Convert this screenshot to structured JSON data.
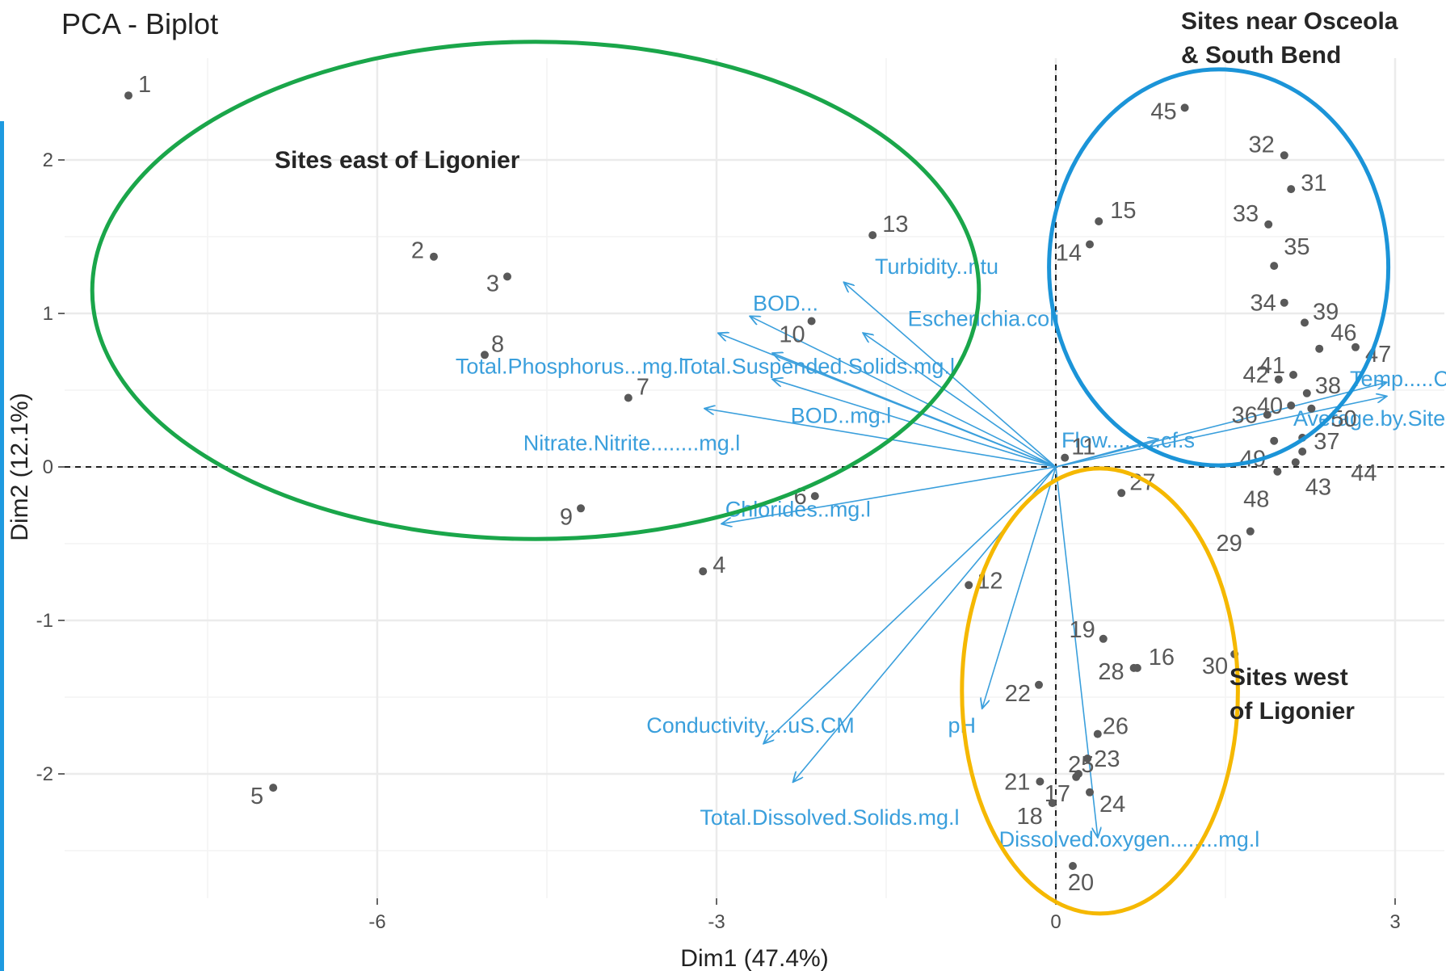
{
  "chart_data": {
    "type": "scatter",
    "title": "PCA - Biplot",
    "xlabel": "Dim1 (47.4%)",
    "ylabel": "Dim2 (12.1%)",
    "xlim": [
      -8.6,
      3.4
    ],
    "ylim": [
      -2.87,
      2.6
    ],
    "xticks": [
      -6,
      -3,
      0,
      3
    ],
    "yticks": [
      -2,
      -1,
      0,
      1,
      2
    ],
    "grid": true,
    "colors": {
      "points": "#595959",
      "labels": "#595959",
      "vectors": "#3a9fdc",
      "grid": "#ebebeb"
    },
    "points": [
      {
        "label": "1",
        "x": -8.2,
        "y": 2.42
      },
      {
        "label": "2",
        "x": -5.5,
        "y": 1.37
      },
      {
        "label": "3",
        "x": -4.85,
        "y": 1.24
      },
      {
        "label": "4",
        "x": -3.12,
        "y": -0.68
      },
      {
        "label": "5",
        "x": -6.92,
        "y": -2.09
      },
      {
        "label": "6",
        "x": -2.13,
        "y": -0.19
      },
      {
        "label": "7",
        "x": -3.78,
        "y": 0.45
      },
      {
        "label": "8",
        "x": -5.05,
        "y": 0.73
      },
      {
        "label": "9",
        "x": -4.2,
        "y": -0.27
      },
      {
        "label": "10",
        "x": -2.16,
        "y": 0.95
      },
      {
        "label": "11",
        "x": 0.08,
        "y": 0.06
      },
      {
        "label": "12",
        "x": -0.77,
        "y": -0.77
      },
      {
        "label": "13",
        "x": -1.62,
        "y": 1.51
      },
      {
        "label": "14",
        "x": 0.3,
        "y": 1.45
      },
      {
        "label": "15",
        "x": 0.38,
        "y": 1.6
      },
      {
        "label": "16",
        "x": 0.72,
        "y": -1.31
      },
      {
        "label": "17",
        "x": 0.2,
        "y": -2.0
      },
      {
        "label": "18",
        "x": -0.03,
        "y": -2.19
      },
      {
        "label": "19",
        "x": 0.42,
        "y": -1.12
      },
      {
        "label": "20",
        "x": 0.15,
        "y": -2.6
      },
      {
        "label": "21",
        "x": -0.14,
        "y": -2.05
      },
      {
        "label": "22",
        "x": -0.15,
        "y": -1.42
      },
      {
        "label": "23",
        "x": 0.28,
        "y": -1.9
      },
      {
        "label": "24",
        "x": 0.3,
        "y": -2.12
      },
      {
        "label": "25",
        "x": 0.18,
        "y": -2.02
      },
      {
        "label": "26",
        "x": 0.37,
        "y": -1.74
      },
      {
        "label": "27",
        "x": 0.58,
        "y": -0.17
      },
      {
        "label": "28",
        "x": 0.69,
        "y": -1.31
      },
      {
        "label": "29",
        "x": 1.72,
        "y": -0.42
      },
      {
        "label": "30",
        "x": 1.58,
        "y": -1.22
      },
      {
        "label": "31",
        "x": 2.08,
        "y": 1.81
      },
      {
        "label": "32",
        "x": 2.02,
        "y": 2.03
      },
      {
        "label": "33",
        "x": 1.88,
        "y": 1.58
      },
      {
        "label": "34",
        "x": 2.02,
        "y": 1.07
      },
      {
        "label": "35",
        "x": 1.93,
        "y": 1.31
      },
      {
        "label": "36",
        "x": 1.87,
        "y": 0.34
      },
      {
        "label": "37",
        "x": 2.18,
        "y": 0.19
      },
      {
        "label": "38",
        "x": 2.22,
        "y": 0.48
      },
      {
        "label": "39",
        "x": 2.2,
        "y": 0.94
      },
      {
        "label": "40",
        "x": 2.08,
        "y": 0.4
      },
      {
        "label": "41",
        "x": 2.1,
        "y": 0.6
      },
      {
        "label": "42",
        "x": 1.97,
        "y": 0.57
      },
      {
        "label": "43",
        "x": 2.12,
        "y": 0.03
      },
      {
        "label": "44",
        "x": 2.18,
        "y": 0.1
      },
      {
        "label": "45",
        "x": 1.14,
        "y": 2.34
      },
      {
        "label": "46",
        "x": 2.33,
        "y": 0.77
      },
      {
        "label": "47",
        "x": 2.65,
        "y": 0.78
      },
      {
        "label": "48",
        "x": 1.96,
        "y": -0.03
      },
      {
        "label": "49",
        "x": 1.93,
        "y": 0.17
      },
      {
        "label": "50",
        "x": 2.26,
        "y": 0.38
      }
    ],
    "vectors": [
      {
        "name": "Turbidity..ntu",
        "x": -1.87,
        "y": 1.2
      },
      {
        "name": "Escherichia.coli",
        "x": -1.7,
        "y": 0.87
      },
      {
        "name": "BOD...",
        "x": -2.7,
        "y": 0.98
      },
      {
        "name": "Total.Suspended.Solids.mg.l",
        "x": -2.98,
        "y": 0.87
      },
      {
        "name": "Total.Phosphorus...mg.l",
        "x": -2.5,
        "y": 0.74
      },
      {
        "name": "BOD..mg.l",
        "x": -2.5,
        "y": 0.57
      },
      {
        "name": "Nitrate.Nitrite........mg.l",
        "x": -3.1,
        "y": 0.38
      },
      {
        "name": "Flow.........cf.s",
        "x": 0.9,
        "y": 0.18
      },
      {
        "name": "Chlorides..mg.l",
        "x": -2.95,
        "y": -0.37
      },
      {
        "name": "Conductivity....uS.CM",
        "x": -2.58,
        "y": -1.8
      },
      {
        "name": "Total.Dissolved.Solids.mg.l",
        "x": -2.32,
        "y": -2.05
      },
      {
        "name": "pH",
        "x": -0.65,
        "y": -1.57
      },
      {
        "name": "Dissolved.oxygen........mg.l",
        "x": 0.37,
        "y": -2.41
      },
      {
        "name": "Temp.....C",
        "x": 2.92,
        "y": 0.55
      },
      {
        "name": "Average.by.Site",
        "x": 2.92,
        "y": 0.46
      }
    ],
    "annotations": [
      {
        "text_lines": [
          "Sites east of Ligonier"
        ],
        "color": "#1aa64a",
        "cx": -4.6,
        "cy": 1.15,
        "rx": 3.92,
        "ry": 1.62
      },
      {
        "text_lines": [
          "Sites near Osceola",
          "& South Bend"
        ],
        "color": "#1b94d8",
        "cx": 1.44,
        "cy": 1.3,
        "rx": 1.5,
        "ry": 1.29
      },
      {
        "text_lines": [
          "Sites west",
          "of Ligonier"
        ],
        "color": "#f5b800",
        "cx": 0.39,
        "cy": -1.46,
        "rx": 1.22,
        "ry": 1.45
      }
    ]
  }
}
